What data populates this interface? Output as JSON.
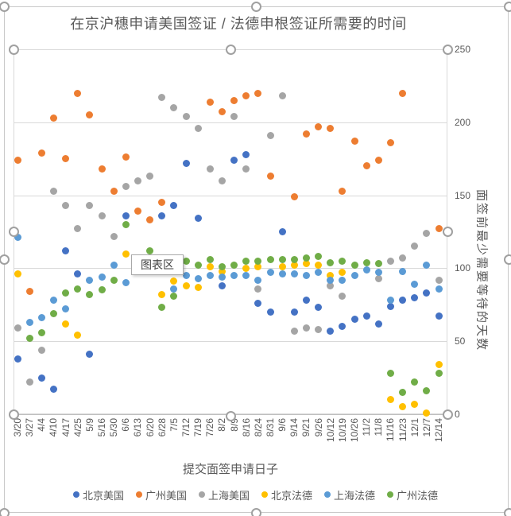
{
  "title": "在京沪穗申请美国签证 / 法德申根签证所需要的时间",
  "tooltip": "图表区",
  "chart_data": {
    "type": "scatter",
    "title": "在京沪穗申请美国签证 / 法德申根签证所需要的时间",
    "xlabel": "提交面签申请日子",
    "ylabel": "面签前最少需要等待的天数",
    "ylim": [
      0,
      250
    ],
    "y_ticks": [
      0,
      50,
      100,
      150,
      200,
      250
    ],
    "grid": true,
    "legend_position": "bottom",
    "categories": [
      "3/20",
      "3/27",
      "4/4",
      "4/10",
      "4/17",
      "4/25",
      "5/9",
      "5/16",
      "5/30",
      "6/6",
      "6/13",
      "6/20",
      "6/28",
      "7/5",
      "7/12",
      "7/19",
      "7/26",
      "8/2",
      "8/9",
      "8/16",
      "8/24",
      "8/31",
      "9/6",
      "9/14",
      "9/21",
      "9/26",
      "10/12",
      "10/19",
      "10/26",
      "11/2",
      "11/8",
      "11/16",
      "11/23",
      "12/1",
      "12/7",
      "12/14"
    ],
    "series": [
      {
        "name": "北京美国",
        "color": "#4472C4",
        "values": [
          38,
          null,
          25,
          17,
          112,
          96,
          41,
          null,
          null,
          136,
          null,
          null,
          136,
          143,
          172,
          134,
          null,
          88,
          174,
          178,
          76,
          70,
          125,
          70,
          78,
          73,
          57,
          60,
          65,
          67,
          62,
          74,
          78,
          80,
          83,
          67
        ]
      },
      {
        "name": "广州美国",
        "color": "#ED7D31",
        "values": [
          174,
          84,
          179,
          203,
          175,
          220,
          205,
          168,
          153,
          176,
          139,
          133,
          145,
          null,
          null,
          null,
          214,
          207,
          215,
          218,
          220,
          163,
          null,
          149,
          192,
          197,
          196,
          153,
          187,
          170,
          174,
          186,
          220,
          null,
          null,
          127
        ]
      },
      {
        "name": "上海美国",
        "color": "#A5A5A5",
        "values": [
          59,
          22,
          44,
          153,
          143,
          127,
          143,
          136,
          122,
          156,
          160,
          163,
          217,
          210,
          204,
          196,
          168,
          160,
          204,
          168,
          86,
          191,
          218,
          57,
          59,
          58,
          88,
          81,
          null,
          null,
          93,
          105,
          107,
          115,
          124,
          92
        ]
      },
      {
        "name": "北京法德",
        "color": "#FFC000",
        "values": [
          96,
          null,
          null,
          null,
          62,
          54,
          null,
          null,
          null,
          110,
          null,
          null,
          82,
          91,
          88,
          87,
          101,
          98,
          null,
          100,
          101,
          null,
          101,
          102,
          103,
          102,
          95,
          97,
          null,
          null,
          null,
          10,
          5,
          7,
          1,
          34
        ]
      },
      {
        "name": "上海法德",
        "color": "#5B9BD5",
        "values": [
          121,
          63,
          66,
          78,
          72,
          null,
          92,
          94,
          102,
          90,
          null,
          null,
          null,
          86,
          95,
          93,
          95,
          94,
          95,
          95,
          92,
          97,
          96,
          96,
          95,
          97,
          92,
          92,
          95,
          99,
          97,
          78,
          98,
          89,
          102,
          86
        ]
      },
      {
        "name": "广州法德",
        "color": "#70AD47",
        "values": [
          null,
          52,
          56,
          69,
          83,
          86,
          82,
          85,
          92,
          130,
          null,
          112,
          73,
          81,
          105,
          102,
          106,
          101,
          102,
          105,
          105,
          106,
          106,
          106,
          107,
          108,
          104,
          105,
          102,
          104,
          103,
          28,
          15,
          22,
          16,
          28
        ]
      }
    ]
  }
}
